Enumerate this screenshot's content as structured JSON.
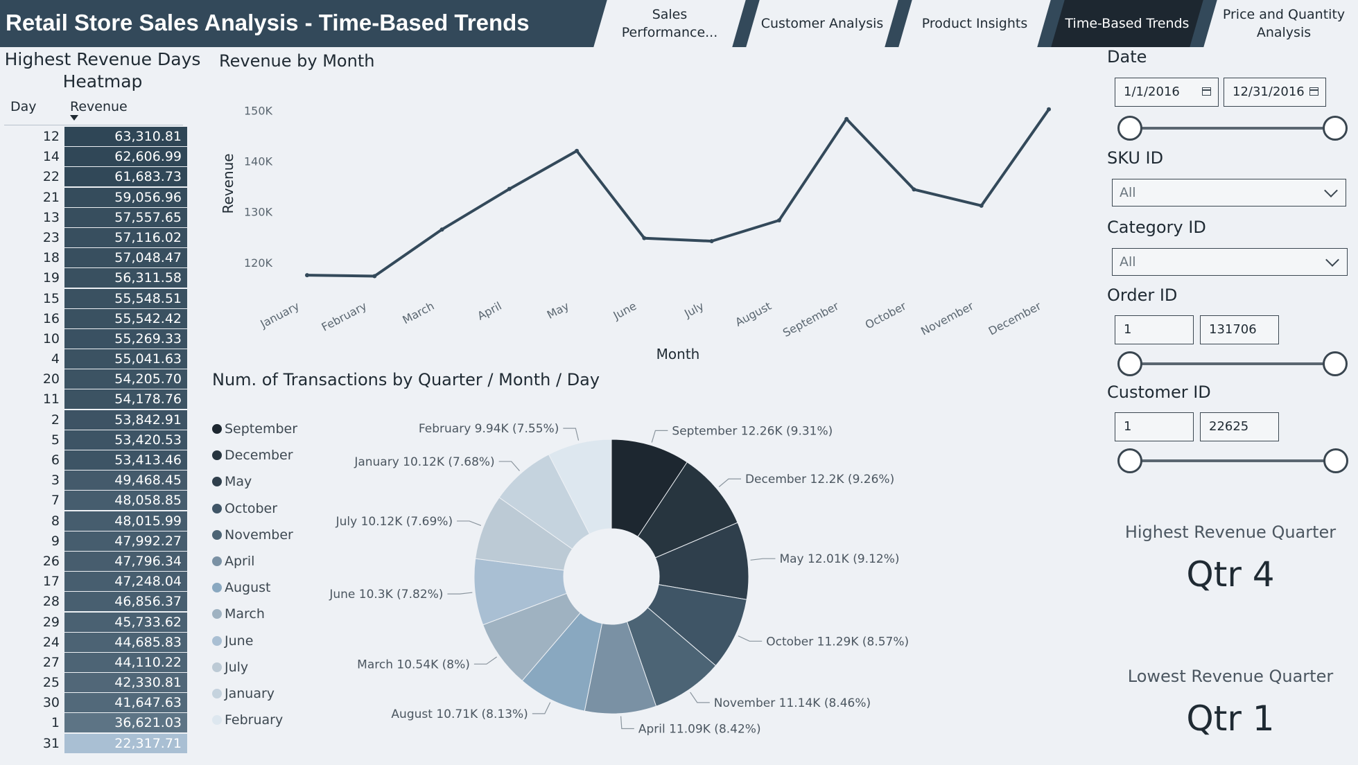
{
  "header": {
    "title": "Retail Store Sales Analysis - Time-Based Trends",
    "tabs": [
      {
        "label": "Sales Performance...",
        "active": false
      },
      {
        "label": "Customer Analysis",
        "active": false
      },
      {
        "label": "Product Insights",
        "active": false
      },
      {
        "label": "Time-Based Trends",
        "active": true
      },
      {
        "label": "Price and Quantity Analysis",
        "active": false
      }
    ]
  },
  "heatmap": {
    "title": "Highest Revenue Days Heatmap",
    "col_day": "Day",
    "col_revenue": "Revenue",
    "color_low": "#a9bfd3",
    "color_high": "#2f4656",
    "rows": [
      {
        "day": "12",
        "revenue": 63310.81,
        "revenue_text": "63,310.81"
      },
      {
        "day": "14",
        "revenue": 62606.99,
        "revenue_text": "62,606.99"
      },
      {
        "day": "22",
        "revenue": 61683.73,
        "revenue_text": "61,683.73"
      },
      {
        "day": "21",
        "revenue": 59056.96,
        "revenue_text": "59,056.96"
      },
      {
        "day": "13",
        "revenue": 57557.65,
        "revenue_text": "57,557.65"
      },
      {
        "day": "23",
        "revenue": 57116.02,
        "revenue_text": "57,116.02"
      },
      {
        "day": "18",
        "revenue": 57048.47,
        "revenue_text": "57,048.47"
      },
      {
        "day": "19",
        "revenue": 56311.58,
        "revenue_text": "56,311.58"
      },
      {
        "day": "15",
        "revenue": 55548.51,
        "revenue_text": "55,548.51"
      },
      {
        "day": "16",
        "revenue": 55542.42,
        "revenue_text": "55,542.42"
      },
      {
        "day": "10",
        "revenue": 55269.33,
        "revenue_text": "55,269.33"
      },
      {
        "day": "4",
        "revenue": 55041.63,
        "revenue_text": "55,041.63"
      },
      {
        "day": "20",
        "revenue": 54205.7,
        "revenue_text": "54,205.70"
      },
      {
        "day": "11",
        "revenue": 54178.76,
        "revenue_text": "54,178.76"
      },
      {
        "day": "2",
        "revenue": 53842.91,
        "revenue_text": "53,842.91"
      },
      {
        "day": "5",
        "revenue": 53420.53,
        "revenue_text": "53,420.53"
      },
      {
        "day": "6",
        "revenue": 53413.46,
        "revenue_text": "53,413.46"
      },
      {
        "day": "3",
        "revenue": 49468.45,
        "revenue_text": "49,468.45"
      },
      {
        "day": "7",
        "revenue": 48058.85,
        "revenue_text": "48,058.85"
      },
      {
        "day": "8",
        "revenue": 48015.99,
        "revenue_text": "48,015.99"
      },
      {
        "day": "9",
        "revenue": 47992.27,
        "revenue_text": "47,992.27"
      },
      {
        "day": "26",
        "revenue": 47796.34,
        "revenue_text": "47,796.34"
      },
      {
        "day": "17",
        "revenue": 47248.04,
        "revenue_text": "47,248.04"
      },
      {
        "day": "28",
        "revenue": 46856.37,
        "revenue_text": "46,856.37"
      },
      {
        "day": "29",
        "revenue": 45733.62,
        "revenue_text": "45,733.62"
      },
      {
        "day": "24",
        "revenue": 44685.83,
        "revenue_text": "44,685.83"
      },
      {
        "day": "27",
        "revenue": 44110.22,
        "revenue_text": "44,110.22"
      },
      {
        "day": "25",
        "revenue": 42330.81,
        "revenue_text": "42,330.81"
      },
      {
        "day": "30",
        "revenue": 41647.63,
        "revenue_text": "41,647.63"
      },
      {
        "day": "1",
        "revenue": 36621.03,
        "revenue_text": "36,621.03"
      },
      {
        "day": "31",
        "revenue": 22317.71,
        "revenue_text": "22,317.71"
      }
    ]
  },
  "chart_data": [
    {
      "type": "line",
      "title": "Revenue by Month",
      "xlabel": "Month",
      "ylabel": "Revenue",
      "categories": [
        "January",
        "February",
        "March",
        "April",
        "May",
        "June",
        "July",
        "August",
        "September",
        "October",
        "November",
        "December"
      ],
      "values": [
        117500,
        117300,
        126500,
        134500,
        142000,
        124800,
        124200,
        128300,
        148300,
        134400,
        131200,
        150200
      ],
      "y_ticks": [
        {
          "value": 120000,
          "label": "120K"
        },
        {
          "value": 130000,
          "label": "130K"
        },
        {
          "value": 140000,
          "label": "140K"
        },
        {
          "value": 150000,
          "label": "150K"
        }
      ],
      "ylim": [
        113000,
        154000
      ],
      "line_color": "#33495a",
      "grid": false
    },
    {
      "type": "pie",
      "title": "Num. of Transactions by Quarter / Month / Day",
      "donut": true,
      "legend_position": "left",
      "slices": [
        {
          "name": "September",
          "value": 12260,
          "value_text": "12.26K",
          "pct": "9.31%",
          "color": "#1d2730"
        },
        {
          "name": "December",
          "value": 12200,
          "value_text": "12.2K",
          "pct": "9.26%",
          "color": "#27353f"
        },
        {
          "name": "May",
          "value": 12010,
          "value_text": "12.01K",
          "pct": "9.12%",
          "color": "#2f3f4c"
        },
        {
          "name": "October",
          "value": 11290,
          "value_text": "11.29K",
          "pct": "8.57%",
          "color": "#3f5566"
        },
        {
          "name": "November",
          "value": 11140,
          "value_text": "11.14K",
          "pct": "8.46%",
          "color": "#4c6475"
        },
        {
          "name": "April",
          "value": 11090,
          "value_text": "11.09K",
          "pct": "8.42%",
          "color": "#7a91a4"
        },
        {
          "name": "August",
          "value": 10710,
          "value_text": "10.71K",
          "pct": "8.13%",
          "color": "#89a8c0"
        },
        {
          "name": "March",
          "value": 10540,
          "value_text": "10.54K",
          "pct": "8%",
          "color": "#9fb2c1"
        },
        {
          "name": "June",
          "value": 10300,
          "value_text": "10.3K",
          "pct": "7.82%",
          "color": "#a9bfd3"
        },
        {
          "name": "July",
          "value": 10120,
          "value_text": "10.12K",
          "pct": "7.69%",
          "color": "#bccad5"
        },
        {
          "name": "January",
          "value": 10120,
          "value_text": "10.12K",
          "pct": "7.68%",
          "color": "#c5d3de"
        },
        {
          "name": "February",
          "value": 9940,
          "value_text": "9.94K",
          "pct": "7.55%",
          "color": "#dde7ef"
        }
      ]
    }
  ],
  "filters": {
    "date": {
      "title": "Date",
      "start": "1/1/2016",
      "end": "12/31/2016",
      "range_low": 0,
      "range_high": 1
    },
    "sku": {
      "title": "SKU ID",
      "value": "All"
    },
    "category": {
      "title": "Category ID",
      "value": "All"
    },
    "order": {
      "title": "Order ID",
      "min": "1",
      "max": "131706",
      "range_low": 0,
      "range_high": 1
    },
    "customer": {
      "title": "Customer ID",
      "min": "1",
      "max": "22625",
      "range_low": 0,
      "range_high": 1
    }
  },
  "kpis": {
    "highest": {
      "label": "Highest Revenue Quarter",
      "value": "Qtr 4"
    },
    "lowest": {
      "label": "Lowest Revenue Quarter",
      "value": "Qtr 1"
    }
  }
}
